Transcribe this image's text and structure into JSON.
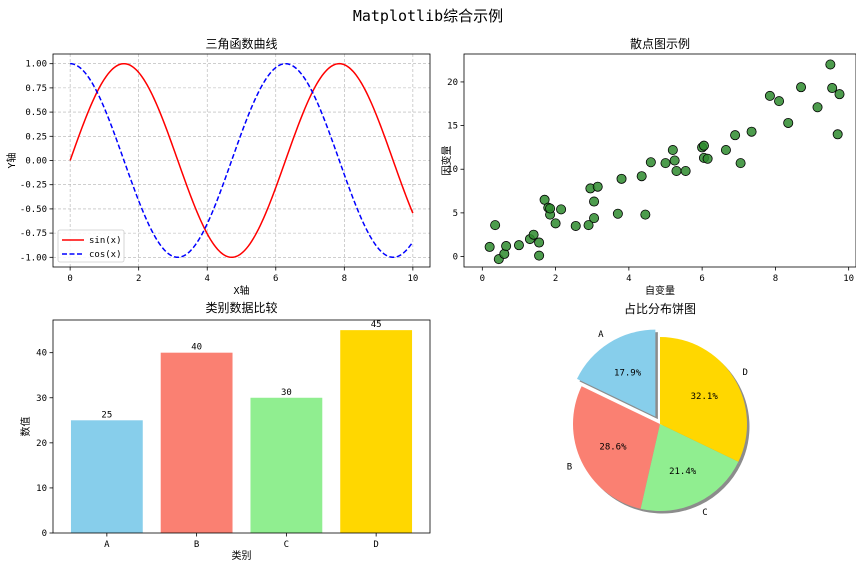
{
  "figure": {
    "suptitle": "Matplotlib综合示例"
  },
  "chart_data": [
    {
      "type": "line",
      "title": "三角函数曲线",
      "xlabel": "X轴",
      "ylabel": "Y轴",
      "xlim": [
        -0.5,
        10.5
      ],
      "ylim": [
        -1.1,
        1.1
      ],
      "xticks": [
        "0",
        "2",
        "4",
        "6",
        "8",
        "10"
      ],
      "yticks": [
        "-1.00",
        "-0.75",
        "-0.50",
        "-0.25",
        "0.00",
        "0.25",
        "0.50",
        "0.75",
        "1.00"
      ],
      "grid": true,
      "legend": "lower-left",
      "series": [
        {
          "name": "sin(x)",
          "function": "sin",
          "x_range": [
            0,
            10
          ],
          "color": "#ff0000",
          "style": "solid"
        },
        {
          "name": "cos(x)",
          "function": "cos",
          "x_range": [
            0,
            10
          ],
          "color": "#0000ff",
          "style": "dashed"
        }
      ]
    },
    {
      "type": "scatter",
      "title": "散点图示例",
      "xlabel": "自变量",
      "ylabel": "因变量",
      "xlim": [
        -0.5,
        10.2
      ],
      "ylim": [
        -1.2,
        23.2
      ],
      "xticks": [
        "0",
        "2",
        "4",
        "6",
        "8",
        "10"
      ],
      "yticks": [
        "0",
        "5",
        "10",
        "15",
        "20"
      ],
      "grid": false,
      "color": "#2e8b2e",
      "points": [
        [
          0.2,
          1.1
        ],
        [
          0.35,
          3.6
        ],
        [
          0.45,
          -0.3
        ],
        [
          0.6,
          0.3
        ],
        [
          0.65,
          1.2
        ],
        [
          1.0,
          1.3
        ],
        [
          1.3,
          2.0
        ],
        [
          1.4,
          2.5
        ],
        [
          1.55,
          0.1
        ],
        [
          1.55,
          1.6
        ],
        [
          1.7,
          6.5
        ],
        [
          1.8,
          5.6
        ],
        [
          1.85,
          4.8
        ],
        [
          1.85,
          5.5
        ],
        [
          2.0,
          3.8
        ],
        [
          2.15,
          5.4
        ],
        [
          2.55,
          3.5
        ],
        [
          2.9,
          3.6
        ],
        [
          2.95,
          7.8
        ],
        [
          3.05,
          6.3
        ],
        [
          3.05,
          4.4
        ],
        [
          3.15,
          8.0
        ],
        [
          3.7,
          4.9
        ],
        [
          3.8,
          8.9
        ],
        [
          4.35,
          9.2
        ],
        [
          4.45,
          4.8
        ],
        [
          4.6,
          10.8
        ],
        [
          5.0,
          10.7
        ],
        [
          5.2,
          12.2
        ],
        [
          5.25,
          11.0
        ],
        [
          5.3,
          9.8
        ],
        [
          5.55,
          9.8
        ],
        [
          6.0,
          12.5
        ],
        [
          6.05,
          12.7
        ],
        [
          6.05,
          11.3
        ],
        [
          6.15,
          11.2
        ],
        [
          6.65,
          12.2
        ],
        [
          6.9,
          13.9
        ],
        [
          7.05,
          10.7
        ],
        [
          7.35,
          14.3
        ],
        [
          7.85,
          18.4
        ],
        [
          8.1,
          17.8
        ],
        [
          8.35,
          15.3
        ],
        [
          8.7,
          19.4
        ],
        [
          9.15,
          17.1
        ],
        [
          9.5,
          22.0
        ],
        [
          9.55,
          19.3
        ],
        [
          9.7,
          14.0
        ],
        [
          9.75,
          18.6
        ]
      ]
    },
    {
      "type": "bar",
      "title": "类别数据比较",
      "xlabel": "类别",
      "ylabel": "数值",
      "ylim": [
        0,
        47.25
      ],
      "yticks": [
        "0",
        "10",
        "20",
        "30",
        "40"
      ],
      "categories": [
        "A",
        "B",
        "C",
        "D"
      ],
      "values": [
        25,
        40,
        30,
        45
      ],
      "data_labels": [
        "25",
        "40",
        "30",
        "45"
      ],
      "colors": [
        "#87ceeb",
        "#fa8072",
        "#90ee90",
        "#ffd700"
      ]
    },
    {
      "type": "pie",
      "title": "占比分布饼图",
      "labels": [
        "A",
        "B",
        "C",
        "D"
      ],
      "percent_labels": [
        "17.9%",
        "28.6%",
        "21.4%",
        "32.1%"
      ],
      "values": [
        25,
        40,
        30,
        45
      ],
      "colors": [
        "#87ceeb",
        "#fa8072",
        "#90ee90",
        "#ffd700"
      ],
      "explode": [
        0.1,
        0,
        0,
        0
      ],
      "start_angle": 90,
      "shadow": true
    }
  ]
}
